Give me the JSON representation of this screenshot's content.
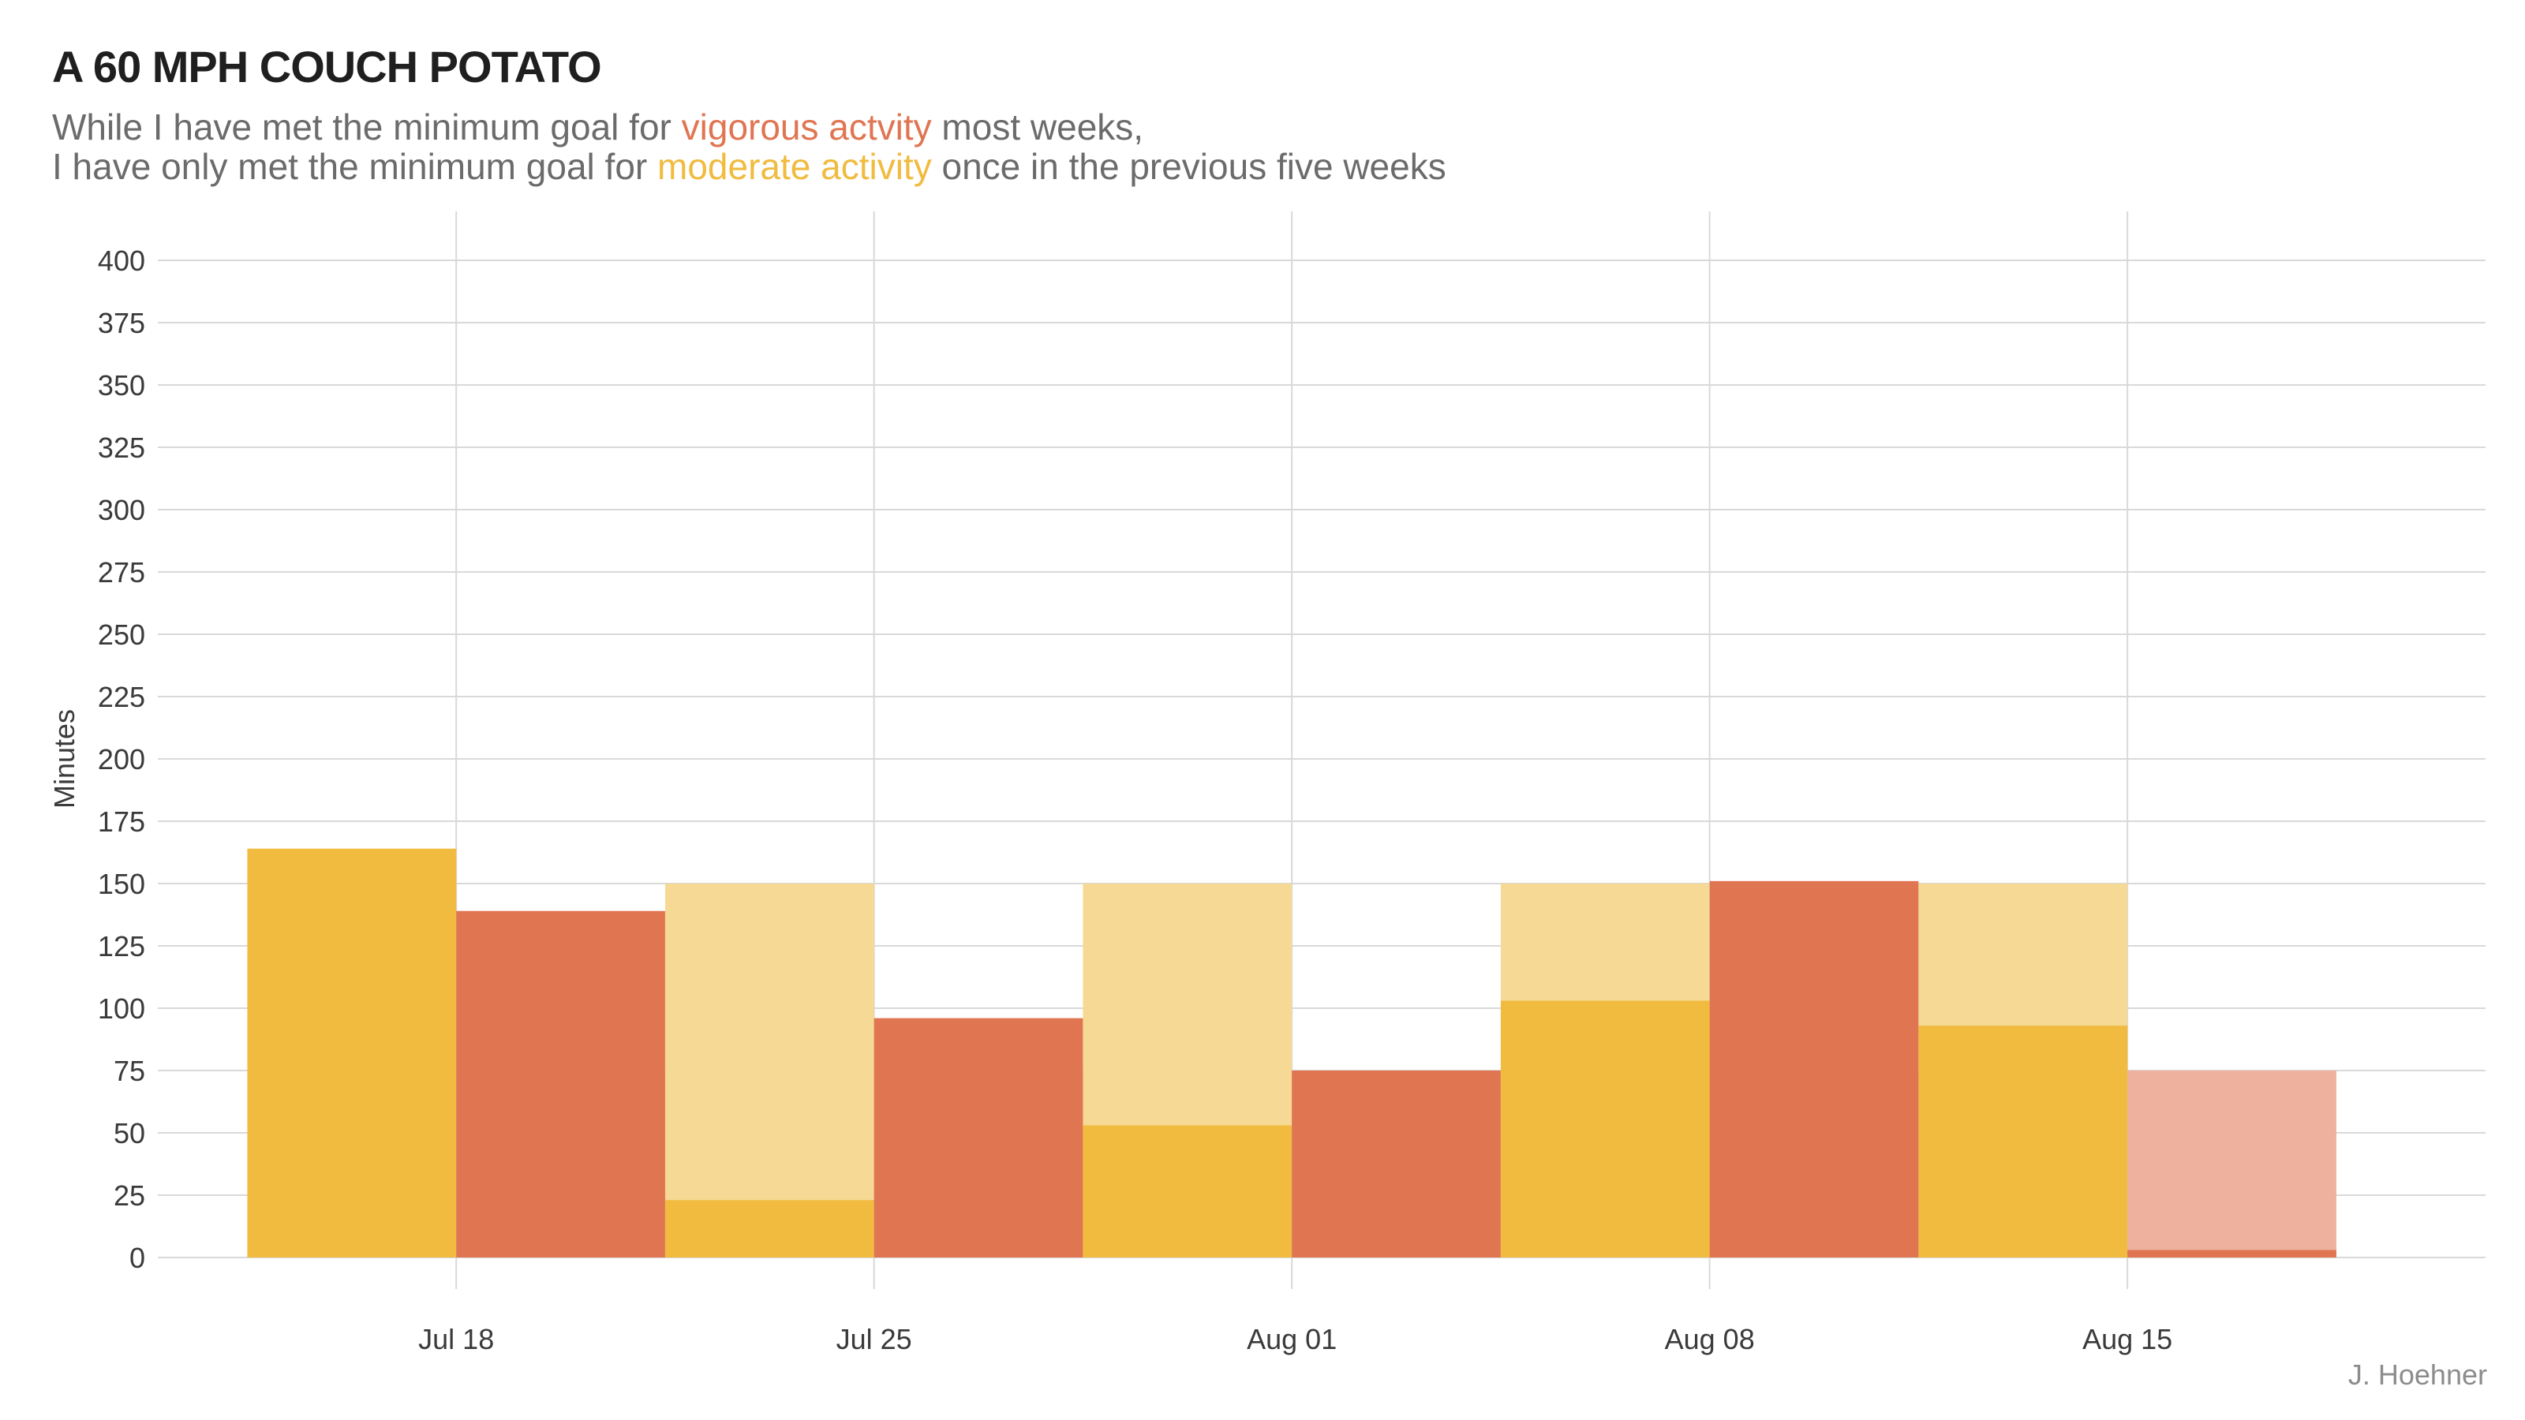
{
  "title": "A 60 MPH COUCH POTATO",
  "subtitle": {
    "line1_pre": "While I have met the minimum goal for ",
    "line1_highlight": "vigorous actvity",
    "line1_post": " most weeks,",
    "line2_pre": "I have only met the minimum goal for ",
    "line2_highlight": "moderate activity",
    "line2_post": " once in the previous five weeks"
  },
  "caption": "J. Hoehner",
  "colors": {
    "moderate": "#f0bb3f",
    "moderate_goal": "#f6d994",
    "vigorous": "#e07552",
    "vigorous_goal": "#edb19e",
    "grid": "#d9d9d9"
  },
  "chart_data": {
    "type": "bar",
    "title": "A 60 MPH COUCH POTATO",
    "xlabel": "",
    "ylabel": "Minutes",
    "ylim": [
      0,
      400
    ],
    "yticks": [
      0,
      25,
      50,
      75,
      100,
      125,
      150,
      175,
      200,
      225,
      250,
      275,
      300,
      325,
      350,
      375,
      400
    ],
    "xlim": [
      "2022-07-13",
      "2022-08-21"
    ],
    "xticks": [
      {
        "label": "Jul 18",
        "date": "2022-07-18"
      },
      {
        "label": "Jul 25",
        "date": "2022-07-25"
      },
      {
        "label": "Aug 01",
        "date": "2022-08-01"
      },
      {
        "label": "Aug 08",
        "date": "2022-08-08"
      },
      {
        "label": "Aug 15",
        "date": "2022-08-15"
      }
    ],
    "grid": true,
    "weeks": [
      {
        "moderate": 164,
        "moderate_goal": 150,
        "vigorous": 139,
        "vigorous_goal": 75
      },
      {
        "moderate": 23,
        "moderate_goal": 150,
        "vigorous": 96,
        "vigorous_goal": 75
      },
      {
        "moderate": 53,
        "moderate_goal": 150,
        "vigorous": 75,
        "vigorous_goal": 75
      },
      {
        "moderate": 103,
        "moderate_goal": 150,
        "vigorous": 151,
        "vigorous_goal": 75
      },
      {
        "moderate": 93,
        "moderate_goal": 150,
        "vigorous": 3,
        "vigorous_goal": 75
      }
    ]
  }
}
